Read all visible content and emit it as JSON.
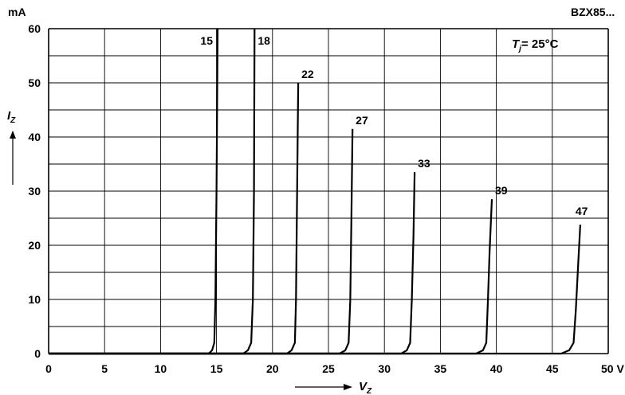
{
  "chart_data": {
    "type": "line",
    "part_number": "BZX85...",
    "condition": {
      "symbol": "T",
      "subscript": "j",
      "text": "= 25°C"
    },
    "y_unit": "mA",
    "x_unit": "V",
    "ylabel": {
      "symbol": "I",
      "subscript": "Z"
    },
    "xlabel": {
      "symbol": "V",
      "subscript": "Z"
    },
    "xlim": [
      0,
      50
    ],
    "ylim": [
      0,
      60
    ],
    "x_ticks": [
      "0",
      "5",
      "10",
      "15",
      "20",
      "25",
      "30",
      "35",
      "40",
      "45",
      "50 V"
    ],
    "y_ticks": [
      "0",
      "10",
      "20",
      "30",
      "40",
      "50",
      "60"
    ],
    "grid": true,
    "series": [
      {
        "name": "15",
        "points": [
          [
            0,
            0
          ],
          [
            14.3,
            0
          ],
          [
            14.6,
            0.6
          ],
          [
            14.8,
            2
          ],
          [
            14.9,
            10
          ],
          [
            15.0,
            30
          ],
          [
            15.1,
            60
          ]
        ]
      },
      {
        "name": "18",
        "points": [
          [
            0,
            0
          ],
          [
            17.4,
            0
          ],
          [
            17.8,
            0.6
          ],
          [
            18.1,
            2
          ],
          [
            18.25,
            10
          ],
          [
            18.35,
            30
          ],
          [
            18.4,
            60
          ]
        ]
      },
      {
        "name": "22",
        "points": [
          [
            0,
            0
          ],
          [
            21.3,
            0
          ],
          [
            21.7,
            0.6
          ],
          [
            22.0,
            2
          ],
          [
            22.1,
            10
          ],
          [
            22.2,
            30
          ],
          [
            22.3,
            50
          ]
        ]
      },
      {
        "name": "27",
        "points": [
          [
            0,
            0
          ],
          [
            26.0,
            0
          ],
          [
            26.5,
            0.6
          ],
          [
            26.8,
            2
          ],
          [
            26.95,
            10
          ],
          [
            27.05,
            25
          ],
          [
            27.15,
            41.5
          ]
        ]
      },
      {
        "name": "33",
        "points": [
          [
            0,
            0
          ],
          [
            31.5,
            0
          ],
          [
            32.0,
            0.6
          ],
          [
            32.3,
            2
          ],
          [
            32.45,
            10
          ],
          [
            32.6,
            22
          ],
          [
            32.7,
            33.5
          ]
        ]
      },
      {
        "name": "39",
        "points": [
          [
            0,
            0
          ],
          [
            38.2,
            0
          ],
          [
            38.8,
            0.6
          ],
          [
            39.1,
            2
          ],
          [
            39.25,
            10
          ],
          [
            39.4,
            19
          ],
          [
            39.6,
            28.5
          ]
        ]
      },
      {
        "name": "47",
        "points": [
          [
            0,
            0
          ],
          [
            45.8,
            0
          ],
          [
            46.5,
            0.6
          ],
          [
            46.9,
            2
          ],
          [
            47.1,
            8
          ],
          [
            47.3,
            16
          ],
          [
            47.5,
            23.8
          ]
        ]
      }
    ]
  }
}
